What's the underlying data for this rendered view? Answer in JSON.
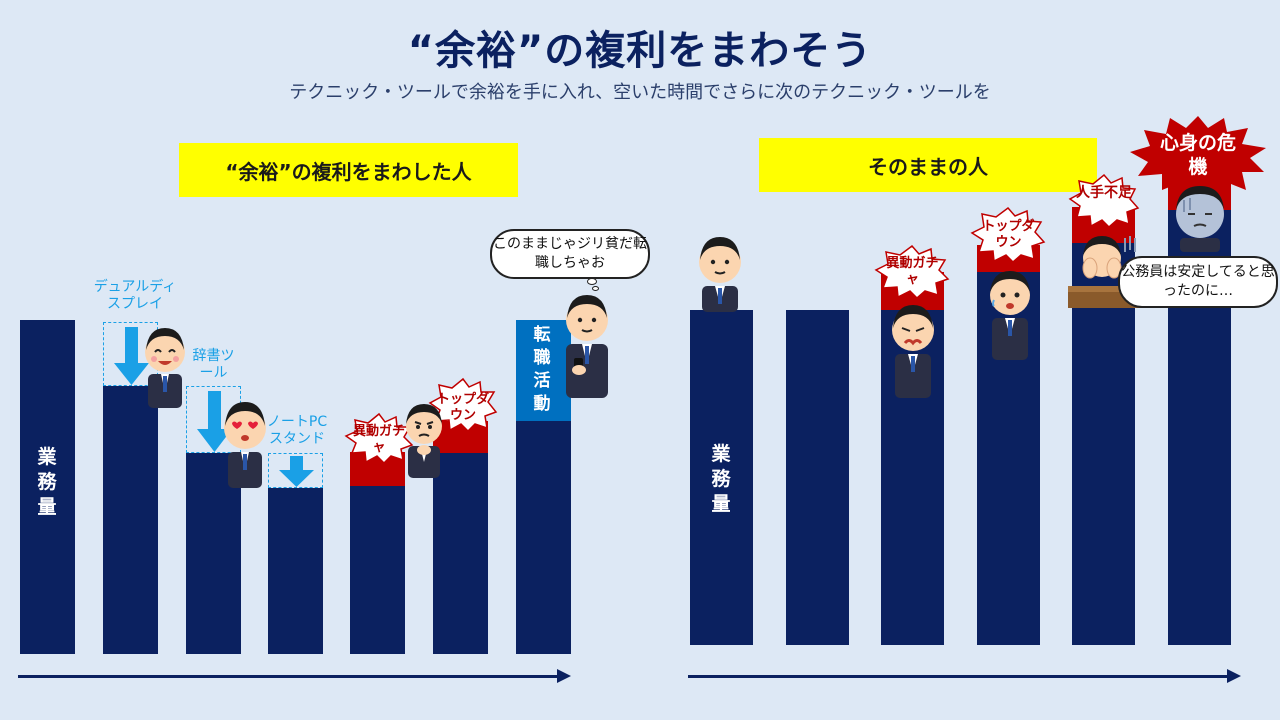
{
  "title": "“余裕”の複利をまわそう",
  "subtitle": "テクニック・ツールで余裕を手に入れ、空いた時間でさらに次のテクニック・ツールを",
  "left": {
    "heading": "“余裕”の複利をまわした人",
    "bar_label": "業務量",
    "tool_labels": {
      "dual_display": "デュアルディスプレイ",
      "dictionary_tool": "辞書ツール",
      "laptop_stand": "ノートPCスタンド"
    },
    "burst_labels": {
      "transfer_gacha": "異動ガチャ",
      "top_down": "トップダウン"
    },
    "job_change_label": "転職活動",
    "speech": "このままじゃジリ貧だ転職しちゃお"
  },
  "right": {
    "heading": "そのままの人",
    "bar_label": "業務量",
    "burst_labels": {
      "transfer_gacha": "異動ガチャ",
      "top_down": "トップダウン",
      "understaffed": "人手不足",
      "crisis": "心身の危機"
    },
    "speech": "公務員は安定してると思ったのに…"
  },
  "colors": {
    "navy": "#0b2160",
    "red": "#c00000",
    "blue": "#0070c0",
    "yellow": "#ffff00",
    "accent_blue": "#1aa0e6"
  }
}
